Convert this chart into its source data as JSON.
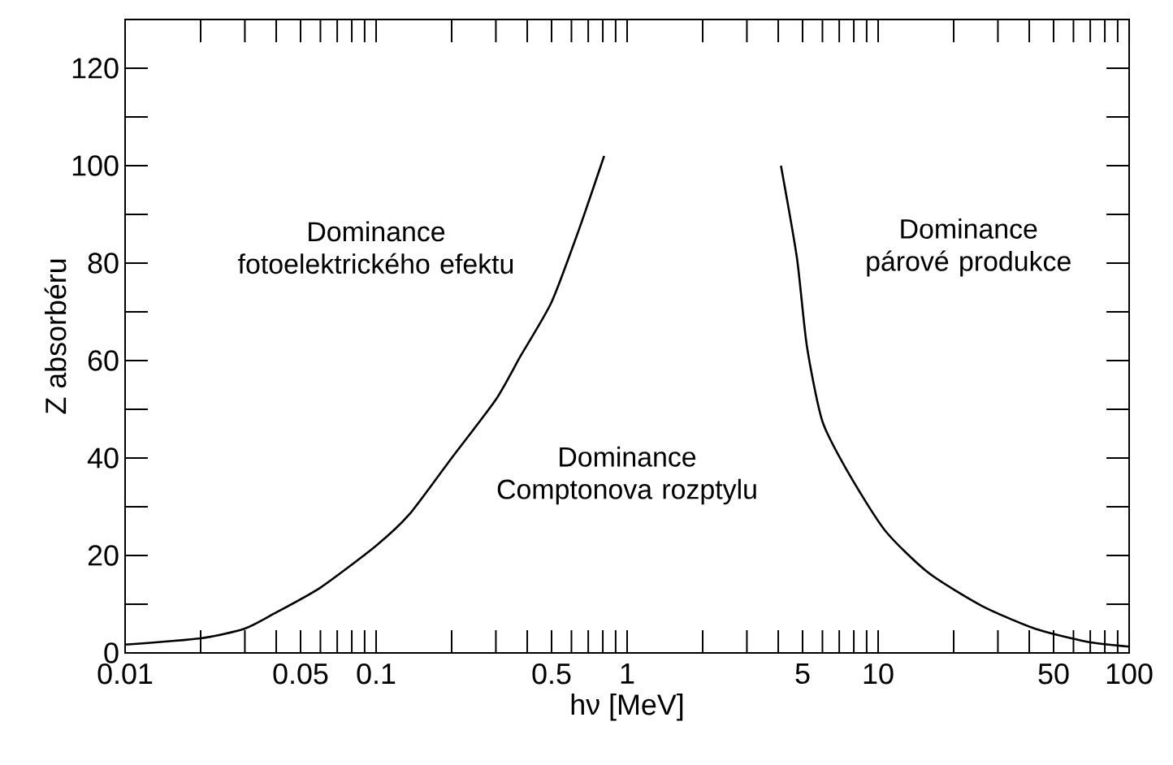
{
  "chart_data": {
    "type": "line",
    "xlabel": "hν [MeV]",
    "ylabel": "Z absorbéru",
    "log": "x",
    "xlim": [
      0.01,
      100
    ],
    "ylim": [
      0,
      130
    ],
    "xticks": [
      {
        "value": 0.01,
        "label": "0.01"
      },
      {
        "value": 0.02,
        "label": null
      },
      {
        "value": 0.03,
        "label": null
      },
      {
        "value": 0.04,
        "label": null
      },
      {
        "value": 0.05,
        "label": "0.05"
      },
      {
        "value": 0.06,
        "label": null
      },
      {
        "value": 0.07,
        "label": null
      },
      {
        "value": 0.08,
        "label": null
      },
      {
        "value": 0.09,
        "label": null
      },
      {
        "value": 0.1,
        "label": "0.1"
      },
      {
        "value": 0.2,
        "label": null
      },
      {
        "value": 0.3,
        "label": null
      },
      {
        "value": 0.4,
        "label": null
      },
      {
        "value": 0.5,
        "label": "0.5"
      },
      {
        "value": 0.6,
        "label": null
      },
      {
        "value": 0.7,
        "label": null
      },
      {
        "value": 0.8,
        "label": null
      },
      {
        "value": 0.9,
        "label": null
      },
      {
        "value": 1,
        "label": "1"
      },
      {
        "value": 2,
        "label": null
      },
      {
        "value": 3,
        "label": null
      },
      {
        "value": 4,
        "label": null
      },
      {
        "value": 5,
        "label": "5"
      },
      {
        "value": 6,
        "label": null
      },
      {
        "value": 7,
        "label": null
      },
      {
        "value": 8,
        "label": null
      },
      {
        "value": 9,
        "label": null
      },
      {
        "value": 10,
        "label": "10"
      },
      {
        "value": 20,
        "label": null
      },
      {
        "value": 30,
        "label": null
      },
      {
        "value": 40,
        "label": null
      },
      {
        "value": 50,
        "label": "50"
      },
      {
        "value": 60,
        "label": null
      },
      {
        "value": 70,
        "label": null
      },
      {
        "value": 80,
        "label": null
      },
      {
        "value": 90,
        "label": null
      },
      {
        "value": 100,
        "label": "100"
      }
    ],
    "yticks": [
      0,
      {
        "value": 10,
        "label": null
      },
      20,
      {
        "value": 30,
        "label": null
      },
      40,
      {
        "value": 50,
        "label": null
      },
      60,
      {
        "value": 70,
        "label": null
      },
      80,
      {
        "value": 90,
        "label": null
      },
      100,
      {
        "value": 110,
        "label": null
      },
      120
    ],
    "series": [
      {
        "color": "#000000",
        "x": [
          0.01,
          0.02,
          0.03,
          0.039,
          0.06,
          0.1,
          0.136,
          0.2,
          0.3,
          0.377,
          0.5,
          0.64,
          0.81
        ],
        "values": [
          1.7,
          3,
          5,
          8,
          13.4,
          22,
          28.5,
          40,
          52,
          61,
          72,
          86.6,
          102
        ]
      },
      {
        "color": "#000000",
        "x": [
          4.1,
          4.75,
          5.2,
          6,
          7.7,
          10.7,
          15.9,
          25.8,
          42,
          68,
          100
        ],
        "values": [
          100,
          81,
          63,
          47.5,
          36.5,
          25,
          16.4,
          9.7,
          5,
          2.3,
          1.3
        ]
      }
    ],
    "annotations": [
      "Dominance fotoelektrického efektu",
      "Dominance Comptonova rozptylu",
      "Dominance párové produkce"
    ]
  }
}
